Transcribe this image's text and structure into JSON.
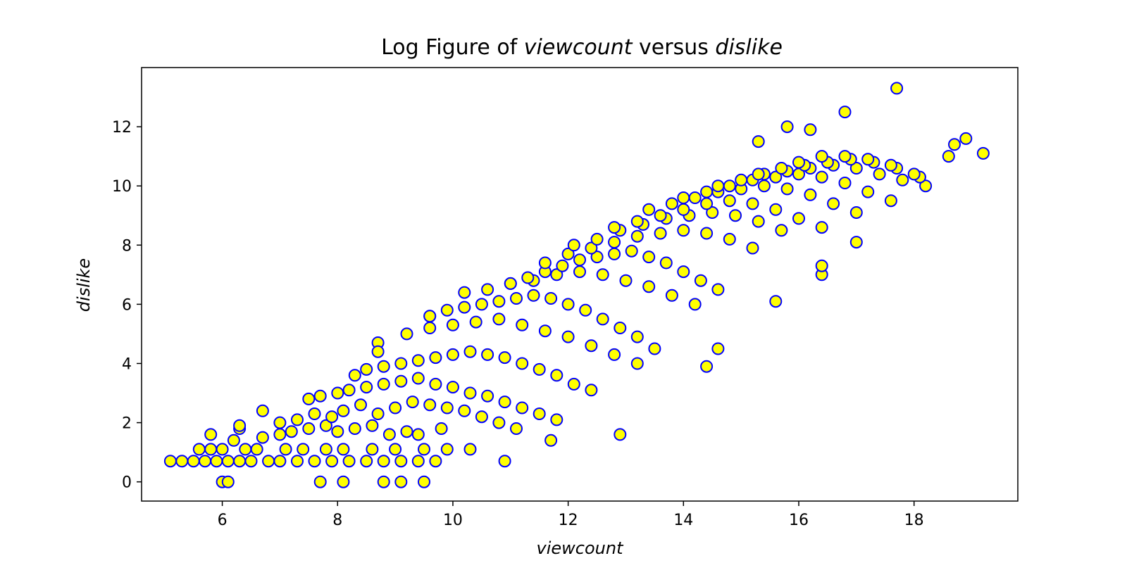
{
  "colors": {
    "marker_face": "#ffff00",
    "marker_edge": "#0000ff",
    "axes": "#000000",
    "background": "#ffffff"
  },
  "chart_data": {
    "type": "scatter",
    "title": {
      "prefix": "Log Figure of ",
      "var_x": "viewcount",
      "middle": " versus ",
      "var_y": "dislike"
    },
    "xlabel": "viewcount",
    "ylabel": "dislike",
    "xlim": [
      4.6,
      19.8
    ],
    "ylim": [
      -0.65,
      14.0
    ],
    "x_ticks": [
      6,
      8,
      10,
      12,
      14,
      16,
      18
    ],
    "y_ticks": [
      0,
      2,
      4,
      6,
      8,
      10,
      12
    ],
    "grid": false,
    "legend": "none",
    "marker_face_color": "#ffff00",
    "marker_edge_color": "#0000ff",
    "series": [
      {
        "x": [
          5.1,
          5.3,
          5.5,
          5.7,
          5.9,
          6.1,
          6.3,
          6.5,
          6.8,
          7.0,
          7.3,
          7.6,
          7.9,
          8.2,
          8.5,
          8.8,
          9.1,
          9.4,
          9.7,
          5.6,
          5.8,
          6.0,
          6.4,
          6.6,
          7.1,
          7.4,
          7.8,
          8.1,
          8.6,
          9.0,
          9.5,
          9.9,
          10.3,
          5.8,
          6.2,
          6.3,
          6.7,
          7.0,
          7.2,
          7.5,
          7.8,
          8.0,
          8.3,
          8.6,
          8.9,
          9.2,
          9.4,
          9.8,
          7.0,
          7.3,
          7.6,
          7.9,
          8.1,
          8.4,
          8.7,
          9.0,
          9.3,
          9.6,
          9.9,
          10.2,
          10.5,
          10.8,
          11.1,
          7.5,
          7.7,
          8.0,
          8.2,
          8.5,
          8.8,
          9.1,
          9.4,
          9.7,
          10.0,
          10.3,
          10.6,
          10.9,
          11.2,
          11.5,
          11.8,
          8.3,
          8.5,
          8.8,
          9.1,
          9.4,
          9.7,
          10.0,
          10.3,
          10.6,
          10.9,
          11.2,
          11.5,
          11.8,
          12.1,
          12.4,
          8.7,
          9.2,
          9.6,
          10.0,
          10.4,
          10.8,
          11.2,
          11.6,
          12.0,
          12.4,
          12.8,
          13.2,
          9.6,
          9.9,
          10.2,
          10.5,
          10.8,
          11.1,
          11.4,
          11.7,
          12.0,
          12.3,
          12.6,
          12.9,
          13.2,
          13.5,
          10.2,
          10.6,
          11.0,
          11.4,
          11.8,
          12.2,
          12.6,
          13.0,
          13.4,
          13.8,
          14.2,
          11.0,
          11.3,
          11.6,
          11.9,
          12.2,
          12.5,
          12.8,
          13.1,
          13.4,
          13.7,
          14.0,
          14.3,
          14.6,
          11.6,
          12.0,
          12.4,
          12.8,
          13.2,
          13.6,
          14.0,
          14.4,
          14.8,
          15.2,
          12.1,
          12.5,
          12.9,
          13.3,
          13.7,
          14.1,
          14.5,
          14.9,
          15.3,
          15.7,
          12.8,
          13.2,
          13.6,
          14.0,
          14.4,
          14.8,
          15.2,
          15.6,
          16.0,
          16.4,
          13.4,
          13.8,
          14.2,
          14.6,
          15.0,
          15.4,
          15.8,
          16.2,
          16.6,
          17.0,
          14.0,
          14.4,
          14.8,
          15.2,
          15.6,
          16.0,
          16.4,
          16.8,
          17.2,
          17.6,
          14.6,
          15.0,
          15.4,
          15.8,
          16.2,
          16.6,
          17.0,
          17.4,
          17.8,
          18.2,
          15.3,
          15.7,
          16.1,
          16.5,
          16.9,
          17.3,
          17.7,
          18.1,
          16.0,
          16.4,
          16.8,
          17.2,
          17.6,
          18.0,
          6.0,
          6.1,
          7.7,
          8.1,
          8.8,
          9.1,
          9.5,
          12.9,
          10.9,
          14.4,
          16.4,
          17.0,
          17.7,
          16.8,
          15.8,
          16.2,
          15.3,
          18.9,
          18.7,
          18.6,
          19.2,
          8.7,
          9.6,
          6.7,
          6.3,
          11.7,
          14.6,
          15.6,
          16.4
        ],
        "y": [
          0.7,
          0.7,
          0.7,
          0.7,
          0.7,
          0.7,
          0.7,
          0.7,
          0.7,
          0.7,
          0.7,
          0.7,
          0.7,
          0.7,
          0.7,
          0.7,
          0.7,
          0.7,
          0.7,
          1.1,
          1.1,
          1.1,
          1.1,
          1.1,
          1.1,
          1.1,
          1.1,
          1.1,
          1.1,
          1.1,
          1.1,
          1.1,
          1.1,
          1.6,
          1.4,
          1.8,
          1.5,
          1.6,
          1.7,
          1.8,
          1.9,
          1.7,
          1.8,
          1.9,
          1.6,
          1.7,
          1.6,
          1.8,
          2.0,
          2.1,
          2.3,
          2.2,
          2.4,
          2.6,
          2.3,
          2.5,
          2.7,
          2.6,
          2.5,
          2.4,
          2.2,
          2.0,
          1.8,
          2.8,
          2.9,
          3.0,
          3.1,
          3.2,
          3.3,
          3.4,
          3.5,
          3.3,
          3.2,
          3.0,
          2.9,
          2.7,
          2.5,
          2.3,
          2.1,
          3.6,
          3.8,
          3.9,
          4.0,
          4.1,
          4.2,
          4.3,
          4.4,
          4.3,
          4.2,
          4.0,
          3.8,
          3.6,
          3.3,
          3.1,
          4.7,
          5.0,
          5.2,
          5.3,
          5.4,
          5.5,
          5.3,
          5.1,
          4.9,
          4.6,
          4.3,
          4.0,
          5.6,
          5.8,
          5.9,
          6.0,
          6.1,
          6.2,
          6.3,
          6.2,
          6.0,
          5.8,
          5.5,
          5.2,
          4.9,
          4.5,
          6.4,
          6.5,
          6.7,
          6.8,
          7.0,
          7.1,
          7.0,
          6.8,
          6.6,
          6.3,
          6.0,
          6.7,
          6.9,
          7.1,
          7.3,
          7.5,
          7.6,
          7.7,
          7.8,
          7.6,
          7.4,
          7.1,
          6.8,
          6.5,
          7.4,
          7.7,
          7.9,
          8.1,
          8.3,
          8.4,
          8.5,
          8.4,
          8.2,
          7.9,
          8.0,
          8.2,
          8.5,
          8.7,
          8.9,
          9.0,
          9.1,
          9.0,
          8.8,
          8.5,
          8.6,
          8.8,
          9.0,
          9.2,
          9.4,
          9.5,
          9.4,
          9.2,
          8.9,
          8.6,
          9.2,
          9.4,
          9.6,
          9.8,
          9.9,
          10.0,
          9.9,
          9.7,
          9.4,
          9.1,
          9.6,
          9.8,
          10.0,
          10.2,
          10.3,
          10.4,
          10.3,
          10.1,
          9.8,
          9.5,
          10.0,
          10.2,
          10.4,
          10.5,
          10.6,
          10.7,
          10.6,
          10.4,
          10.2,
          10.0,
          10.4,
          10.6,
          10.7,
          10.8,
          10.9,
          10.8,
          10.6,
          10.3,
          10.8,
          11.0,
          11.0,
          10.9,
          10.7,
          10.4,
          0.0,
          0.0,
          0.0,
          0.0,
          0.0,
          0.0,
          0.0,
          1.6,
          0.7,
          3.9,
          7.0,
          8.1,
          13.3,
          12.5,
          12.0,
          11.9,
          11.5,
          11.6,
          11.4,
          11.0,
          11.1,
          4.4,
          5.6,
          2.4,
          1.9,
          1.4,
          4.5,
          6.1,
          7.3
        ]
      }
    ]
  }
}
